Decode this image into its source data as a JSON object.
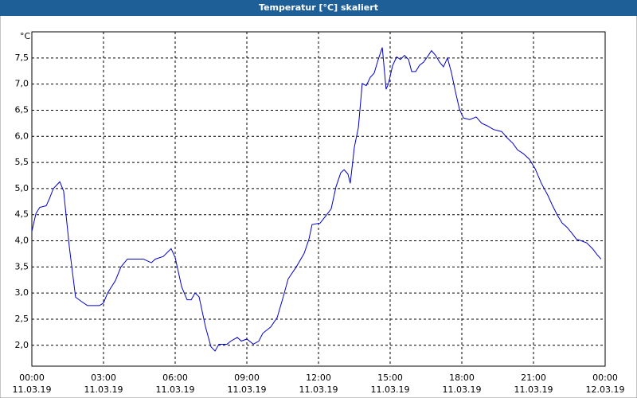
{
  "chart_data": {
    "type": "line",
    "title": "Temperatur [°C] skaliert",
    "ylabel": "°C",
    "x": [
      0,
      0.17,
      0.33,
      0.6,
      0.73,
      0.9,
      1.17,
      1.33,
      1.57,
      1.83,
      2.07,
      2.33,
      2.83,
      3,
      3.17,
      3.5,
      3.73,
      4,
      4.67,
      5,
      5.17,
      5.5,
      5.83,
      6,
      6.27,
      6.5,
      6.67,
      6.83,
      7,
      7.27,
      7.5,
      7.67,
      7.83,
      8.17,
      8.33,
      8.6,
      8.77,
      9,
      9.27,
      9.5,
      9.67,
      10,
      10.27,
      10.5,
      10.73,
      11.07,
      11.4,
      11.6,
      11.73,
      12.07,
      12.33,
      12.53,
      12.73,
      12.93,
      13.07,
      13.23,
      13.33,
      13.5,
      13.67,
      13.83,
      14,
      14.17,
      14.33,
      14.5,
      14.67,
      14.83,
      14.93,
      15.1,
      15.27,
      15.43,
      15.6,
      15.77,
      15.9,
      16.07,
      16.23,
      16.4,
      16.6,
      16.73,
      16.9,
      17.07,
      17.23,
      17.4,
      17.57,
      17.73,
      17.9,
      18.07,
      18.33,
      18.6,
      18.83,
      19.07,
      19.33,
      19.67,
      19.9,
      20.13,
      20.33,
      20.57,
      20.83,
      21.07,
      21.33,
      21.6,
      21.8,
      22,
      22.2,
      22.4,
      22.6,
      22.8,
      23,
      23.23,
      23.47,
      23.67,
      23.83
    ],
    "series": [
      {
        "color": "#0000cc",
        "values": [
          4.18,
          4.52,
          4.64,
          4.67,
          4.8,
          5.0,
          5.13,
          4.95,
          3.88,
          2.92,
          2.84,
          2.76,
          2.76,
          2.81,
          3.0,
          3.24,
          3.5,
          3.65,
          3.65,
          3.58,
          3.65,
          3.7,
          3.85,
          3.68,
          3.12,
          2.87,
          2.87,
          3.0,
          2.93,
          2.35,
          1.97,
          1.89,
          2.02,
          2.02,
          2.08,
          2.15,
          2.08,
          2.12,
          2.02,
          2.08,
          2.23,
          2.35,
          2.53,
          2.89,
          3.27,
          3.5,
          3.76,
          4.03,
          4.31,
          4.34,
          4.49,
          4.61,
          5.03,
          5.3,
          5.36,
          5.28,
          5.1,
          5.79,
          6.17,
          7.01,
          6.97,
          7.13,
          7.21,
          7.47,
          7.7,
          6.9,
          7.01,
          7.35,
          7.52,
          7.47,
          7.55,
          7.47,
          7.24,
          7.24,
          7.36,
          7.42,
          7.55,
          7.64,
          7.55,
          7.42,
          7.33,
          7.5,
          7.21,
          6.86,
          6.52,
          6.35,
          6.32,
          6.37,
          6.25,
          6.2,
          6.13,
          6.09,
          5.97,
          5.87,
          5.74,
          5.67,
          5.56,
          5.38,
          5.1,
          4.87,
          4.67,
          4.49,
          4.34,
          4.26,
          4.15,
          4.03,
          4.0,
          3.96,
          3.85,
          3.73,
          3.65
        ]
      }
    ],
    "xlim": [
      0,
      24
    ],
    "xticks": [
      {
        "value": 0,
        "label": "00:00"
      },
      {
        "value": 3,
        "label": "03:00"
      },
      {
        "value": 6,
        "label": "06:00"
      },
      {
        "value": 9,
        "label": "09:00"
      },
      {
        "value": 12,
        "label": "12:00"
      },
      {
        "value": 15,
        "label": "15:00"
      },
      {
        "value": 18,
        "label": "18:00"
      },
      {
        "value": 21,
        "label": "21:00"
      },
      {
        "value": 24,
        "label": "00:00"
      }
    ],
    "xtick_dates": [
      "11.03.19",
      "11.03.19",
      "11.03.19",
      "11.03.19",
      "11.03.19",
      "11.03.19",
      "11.03.19",
      "11.03.19",
      "12.03.19"
    ],
    "ylim": [
      1.6,
      8.0
    ],
    "yticks": [
      {
        "value": 2,
        "label": "2,0"
      },
      {
        "value": 2.5,
        "label": "2,5"
      },
      {
        "value": 3,
        "label": "3,0"
      },
      {
        "value": 3.5,
        "label": "3,5"
      },
      {
        "value": 4,
        "label": "4,0"
      },
      {
        "value": 4.5,
        "label": "4,5"
      },
      {
        "value": 5,
        "label": "5,0"
      },
      {
        "value": 5.5,
        "label": "5,5"
      },
      {
        "value": 6,
        "label": "6,0"
      },
      {
        "value": 6.5,
        "label": "6,5"
      },
      {
        "value": 7,
        "label": "7,0"
      },
      {
        "value": 7.5,
        "label": "7,5"
      }
    ],
    "grid": true
  }
}
